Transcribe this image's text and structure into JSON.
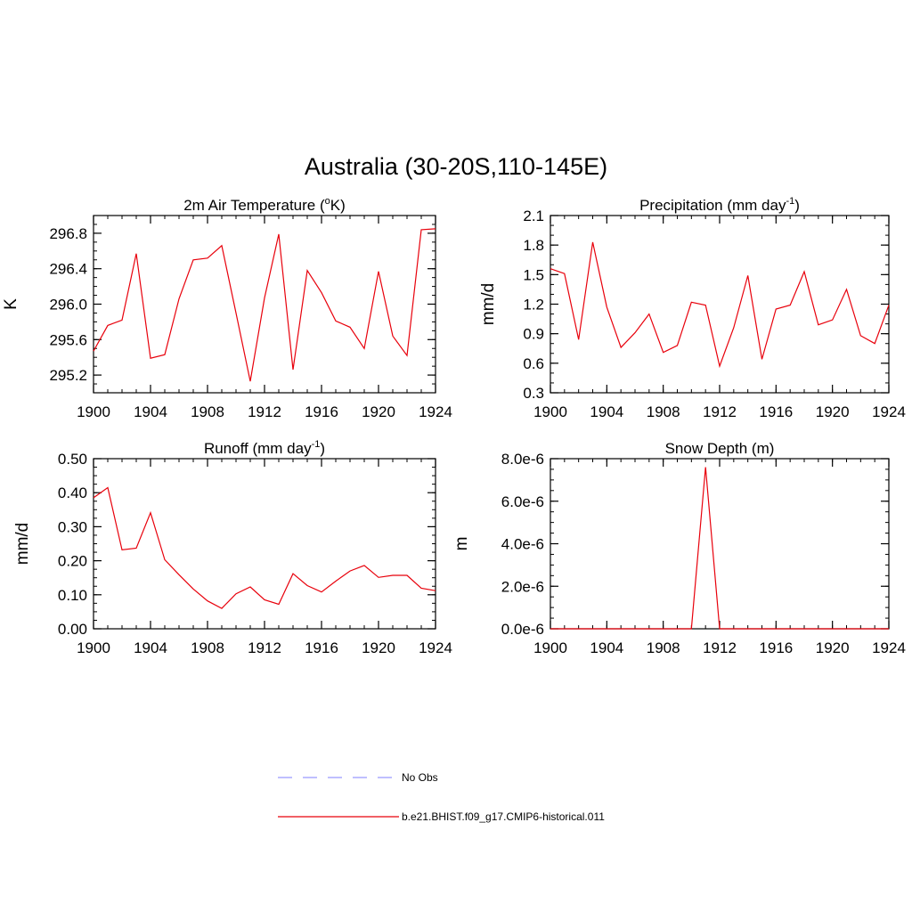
{
  "figure": {
    "title": "Australia (30-20S,110-145E)"
  },
  "colors": {
    "series": "#e8000b",
    "obs": "#9999ff",
    "axis": "#000000"
  },
  "legend": {
    "items": [
      {
        "label": "No Obs",
        "style": "dashed",
        "color": "#9999ff"
      },
      {
        "label": "b.e21.BHIST.f09_g17.CMIP6-historical.011",
        "style": "solid",
        "color": "#e8000b"
      }
    ]
  },
  "chart_data": [
    {
      "type": "line",
      "title": "2m Air Temperature (°K)",
      "title_parts": {
        "pre": "2m Air Temperature (",
        "sup": "o",
        "post": "K)"
      },
      "ylabel": "K",
      "xlim": [
        1900,
        1924
      ],
      "ylim": [
        295.0,
        297.0
      ],
      "xticks": [
        1900,
        1904,
        1908,
        1912,
        1916,
        1920,
        1924
      ],
      "xtick_labels": [
        "1900",
        "1904",
        "1908",
        "1912",
        "1916",
        "1920",
        "1924"
      ],
      "yticks": [
        295.2,
        295.6,
        296.0,
        296.4,
        296.8
      ],
      "ytick_labels": [
        "295.2",
        "295.6",
        "296.0",
        "296.4",
        "296.8"
      ],
      "yminor": 0.1,
      "series": [
        {
          "name": "b.e21.BHIST.f09_g17.CMIP6-historical.011",
          "x": [
            1900,
            1901,
            1902,
            1903,
            1904,
            1905,
            1906,
            1907,
            1908,
            1909,
            1910,
            1911,
            1912,
            1913,
            1914,
            1915,
            1916,
            1917,
            1918,
            1919,
            1920,
            1921,
            1922,
            1923,
            1924
          ],
          "y": [
            295.47,
            295.76,
            295.82,
            296.57,
            295.39,
            295.43,
            296.06,
            296.5,
            296.52,
            296.66,
            295.9,
            295.13,
            296.07,
            296.79,
            295.26,
            296.38,
            296.13,
            295.81,
            295.74,
            295.5,
            296.37,
            295.64,
            295.42,
            296.84,
            296.85
          ]
        }
      ]
    },
    {
      "type": "line",
      "title": "Precipitation (mm day-1)",
      "title_parts": {
        "pre": "Precipitation (mm day",
        "sup": "-1",
        "post": ")"
      },
      "ylabel": "mm/d",
      "xlim": [
        1900,
        1924
      ],
      "ylim": [
        0.3,
        2.1
      ],
      "xticks": [
        1900,
        1904,
        1908,
        1912,
        1916,
        1920,
        1924
      ],
      "xtick_labels": [
        "1900",
        "1904",
        "1908",
        "1912",
        "1916",
        "1920",
        "1924"
      ],
      "yticks": [
        0.3,
        0.6,
        0.9,
        1.2,
        1.5,
        1.8,
        2.1
      ],
      "ytick_labels": [
        "0.3",
        "0.6",
        "0.9",
        "1.2",
        "1.5",
        "1.8",
        "2.1"
      ],
      "yminor": 0.1,
      "series": [
        {
          "name": "b.e21.BHIST.f09_g17.CMIP6-historical.011",
          "x": [
            1900,
            1901,
            1902,
            1903,
            1904,
            1905,
            1906,
            1907,
            1908,
            1909,
            1910,
            1911,
            1912,
            1913,
            1914,
            1915,
            1916,
            1917,
            1918,
            1919,
            1920,
            1921,
            1922,
            1923,
            1924
          ],
          "y": [
            1.56,
            1.51,
            0.84,
            1.83,
            1.17,
            0.76,
            0.91,
            1.1,
            0.71,
            0.78,
            1.22,
            1.19,
            0.57,
            0.96,
            1.49,
            0.64,
            1.15,
            1.19,
            1.53,
            0.99,
            1.04,
            1.35,
            0.88,
            0.8,
            1.19
          ]
        }
      ]
    },
    {
      "type": "line",
      "title": "Runoff (mm day-1)",
      "title_parts": {
        "pre": "Runoff (mm day",
        "sup": "-1",
        "post": ")"
      },
      "ylabel": "mm/d",
      "xlim": [
        1900,
        1924
      ],
      "ylim": [
        0.0,
        0.5
      ],
      "xticks": [
        1900,
        1904,
        1908,
        1912,
        1916,
        1920,
        1924
      ],
      "xtick_labels": [
        "1900",
        "1904",
        "1908",
        "1912",
        "1916",
        "1920",
        "1924"
      ],
      "yticks": [
        0.0,
        0.1,
        0.2,
        0.3,
        0.4,
        0.5
      ],
      "ytick_labels": [
        "0.00",
        "0.10",
        "0.20",
        "0.30",
        "0.40",
        "0.50"
      ],
      "yminor": 0.025,
      "series": [
        {
          "name": "b.e21.BHIST.f09_g17.CMIP6-historical.011",
          "x": [
            1900,
            1901,
            1902,
            1903,
            1904,
            1905,
            1906,
            1907,
            1908,
            1909,
            1910,
            1911,
            1912,
            1913,
            1914,
            1915,
            1916,
            1917,
            1918,
            1919,
            1920,
            1921,
            1922,
            1923,
            1924
          ],
          "y": [
            0.385,
            0.415,
            0.232,
            0.237,
            0.341,
            0.203,
            0.159,
            0.117,
            0.082,
            0.06,
            0.103,
            0.123,
            0.085,
            0.072,
            0.162,
            0.127,
            0.108,
            0.14,
            0.17,
            0.186,
            0.151,
            0.157,
            0.157,
            0.119,
            0.112
          ]
        }
      ]
    },
    {
      "type": "line",
      "title": "Snow Depth (m)",
      "title_parts": {
        "pre": "Snow Depth (m)",
        "sup": "",
        "post": ""
      },
      "ylabel": "m",
      "xlim": [
        1900,
        1924
      ],
      "ylim": [
        0.0,
        8e-06
      ],
      "xticks": [
        1900,
        1904,
        1908,
        1912,
        1916,
        1920,
        1924
      ],
      "xtick_labels": [
        "1900",
        "1904",
        "1908",
        "1912",
        "1916",
        "1920",
        "1924"
      ],
      "yticks": [
        0.0,
        2e-06,
        4e-06,
        6e-06,
        8e-06
      ],
      "ytick_labels": [
        "0.0e-6",
        "2.0e-6",
        "4.0e-6",
        "6.0e-6",
        "8.0e-6"
      ],
      "yminor": 5e-07,
      "series": [
        {
          "name": "b.e21.BHIST.f09_g17.CMIP6-historical.011",
          "x": [
            1900,
            1901,
            1902,
            1903,
            1904,
            1905,
            1906,
            1907,
            1908,
            1909,
            1910,
            1911,
            1912,
            1913,
            1914,
            1915,
            1916,
            1917,
            1918,
            1919,
            1920,
            1921,
            1922,
            1923,
            1924
          ],
          "y": [
            0,
            0,
            0,
            0,
            0,
            0,
            0,
            0,
            0,
            0,
            0,
            7.6e-06,
            0,
            0,
            0,
            0,
            0,
            0,
            0,
            0,
            0,
            0,
            0,
            0,
            0
          ]
        }
      ]
    }
  ]
}
